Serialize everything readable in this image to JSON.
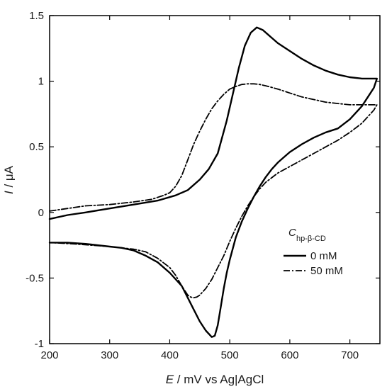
{
  "chart_data": {
    "type": "line",
    "title": "",
    "xlabel": {
      "var": "E",
      "unit": " / mV vs Ag|AgCl"
    },
    "ylabel": {
      "var": "I",
      "unit": " / μA"
    },
    "xlim": [
      200,
      750
    ],
    "ylim": [
      -1,
      1.5
    ],
    "x_ticks": [
      200,
      300,
      400,
      500,
      600,
      700
    ],
    "y_ticks": [
      -1,
      -0.5,
      0,
      0.5,
      1,
      1.5
    ],
    "x_tick_labels": [
      "200",
      "300",
      "400",
      "500",
      "600",
      "700"
    ],
    "y_tick_labels": [
      "-1",
      "-0.5",
      "0",
      "0.5",
      "1",
      "1.5"
    ],
    "grid": false,
    "legend": {
      "placement": "lower-right",
      "title": {
        "main": "C",
        "sub": "hp-β-CD"
      },
      "entries": [
        "0 mM",
        "50 mM"
      ]
    },
    "series": [
      {
        "name": "0 mM",
        "dash": "solid",
        "color": "#000000",
        "x": [
          200,
          230,
          260,
          300,
          340,
          380,
          410,
          430,
          450,
          465,
          480,
          495,
          505,
          515,
          525,
          535,
          545,
          555,
          565,
          580,
          600,
          620,
          640,
          660,
          680,
          700,
          720,
          735,
          745,
          740,
          730,
          720,
          700,
          680,
          660,
          640,
          620,
          600,
          590,
          580,
          570,
          560,
          550,
          540,
          530,
          520,
          510,
          500,
          495,
          490,
          485,
          480,
          475,
          470,
          460,
          450,
          440,
          430,
          420,
          400,
          380,
          360,
          340,
          320,
          300,
          280,
          260,
          230,
          200
        ],
        "y": [
          -0.05,
          -0.02,
          0.0,
          0.03,
          0.06,
          0.09,
          0.13,
          0.17,
          0.25,
          0.33,
          0.45,
          0.7,
          0.9,
          1.1,
          1.27,
          1.37,
          1.41,
          1.39,
          1.35,
          1.29,
          1.23,
          1.17,
          1.12,
          1.08,
          1.05,
          1.03,
          1.02,
          1.02,
          1.02,
          0.95,
          0.88,
          0.81,
          0.71,
          0.64,
          0.61,
          0.57,
          0.52,
          0.46,
          0.42,
          0.38,
          0.33,
          0.27,
          0.2,
          0.12,
          0.03,
          -0.07,
          -0.19,
          -0.36,
          -0.46,
          -0.58,
          -0.72,
          -0.86,
          -0.94,
          -0.95,
          -0.9,
          -0.83,
          -0.74,
          -0.65,
          -0.56,
          -0.46,
          -0.38,
          -0.33,
          -0.29,
          -0.27,
          -0.26,
          -0.25,
          -0.24,
          -0.23,
          -0.23
        ]
      },
      {
        "name": "50 mM",
        "dash": "dashdot",
        "color": "#000000",
        "x": [
          200,
          230,
          260,
          300,
          340,
          370,
          390,
          400,
          410,
          420,
          430,
          440,
          450,
          460,
          470,
          480,
          490,
          500,
          510,
          520,
          530,
          540,
          550,
          560,
          580,
          600,
          620,
          640,
          660,
          680,
          700,
          720,
          740,
          745,
          740,
          730,
          720,
          700,
          680,
          660,
          640,
          620,
          600,
          580,
          560,
          550,
          540,
          530,
          520,
          510,
          500,
          490,
          480,
          470,
          460,
          450,
          445,
          440,
          435,
          430,
          420,
          410,
          400,
          380,
          360,
          340,
          320,
          300,
          270,
          240,
          200
        ],
        "y": [
          0.01,
          0.03,
          0.05,
          0.06,
          0.08,
          0.1,
          0.13,
          0.15,
          0.2,
          0.28,
          0.4,
          0.52,
          0.62,
          0.71,
          0.79,
          0.85,
          0.9,
          0.94,
          0.96,
          0.975,
          0.98,
          0.98,
          0.975,
          0.965,
          0.94,
          0.91,
          0.88,
          0.86,
          0.84,
          0.83,
          0.82,
          0.82,
          0.82,
          0.82,
          0.78,
          0.73,
          0.68,
          0.61,
          0.55,
          0.5,
          0.45,
          0.4,
          0.35,
          0.3,
          0.23,
          0.18,
          0.12,
          0.05,
          -0.03,
          -0.12,
          -0.22,
          -0.33,
          -0.42,
          -0.51,
          -0.58,
          -0.63,
          -0.645,
          -0.65,
          -0.645,
          -0.63,
          -0.56,
          -0.48,
          -0.42,
          -0.35,
          -0.3,
          -0.28,
          -0.27,
          -0.26,
          -0.25,
          -0.24,
          -0.23
        ]
      }
    ]
  }
}
